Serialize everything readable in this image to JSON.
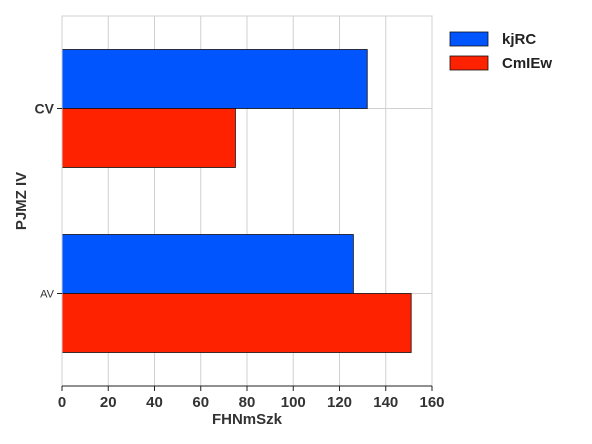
{
  "chart_data": {
    "type": "bar",
    "orientation": "horizontal",
    "categories": [
      "CV",
      "AV"
    ],
    "series": [
      {
        "name": "kjRC",
        "color": "#0055ff",
        "values": [
          132,
          126
        ]
      },
      {
        "name": "CmIEw",
        "color": "#ff2200",
        "values": [
          75,
          151
        ]
      }
    ],
    "xlabel": "FHNmSzk",
    "ylabel": "PJMZ IV",
    "xlim": [
      0,
      160
    ],
    "xticks": [
      "0",
      "20",
      "40",
      "60",
      "80",
      "100",
      "120",
      "140",
      "160"
    ],
    "grid": true,
    "legend_position": "top-right"
  }
}
